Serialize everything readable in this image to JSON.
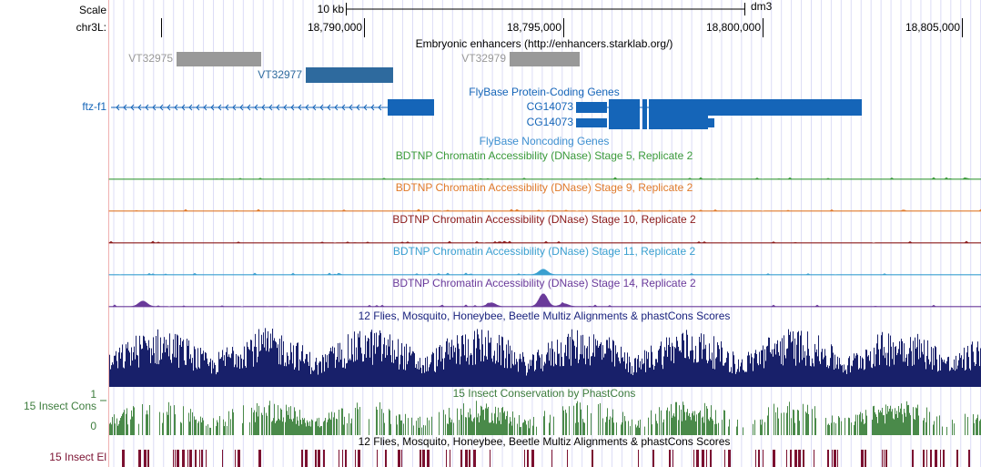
{
  "scale": {
    "label": "Scale",
    "bar": "10 kb",
    "assembly": "dm3"
  },
  "ruler": {
    "chrom": "chr3L:",
    "positions": [
      "18,790,000",
      "18,795,000",
      "18,800,000",
      "18,805,000"
    ]
  },
  "enhancers": {
    "title": "Embryonic enhancers (http://enhancers.starklab.org/)",
    "items": [
      "VT32975",
      "VT32977",
      "VT32979"
    ]
  },
  "protein_coding": {
    "title": "FlyBase Protein-Coding Genes",
    "genes": [
      "ftz-f1",
      "CG14073",
      "CG14073"
    ]
  },
  "noncoding": {
    "title": "FlyBase Noncoding Genes"
  },
  "dnase_tracks": [
    "BDTNP Chromatin Accessibility (DNase) Stage 5, Replicate 2",
    "BDTNP Chromatin Accessibility (DNase) Stage 9, Replicate 2",
    "BDTNP Chromatin Accessibility (DNase) Stage 10, Replicate 2",
    "BDTNP Chromatin Accessibility (DNase) Stage 11, Replicate 2",
    "BDTNP Chromatin Accessibility (DNase) Stage 14, Replicate 2"
  ],
  "multiz": {
    "title": "12 Flies, Mosquito, Honeybee, Beetle Multiz Alignments & phastCons Scores"
  },
  "phastcons": {
    "title": "15 Insect Conservation by PhastCons",
    "label": "15 Insect Cons",
    "max": 1,
    "min": 0
  },
  "elements": {
    "title": "12 Flies, Mosquito, Honeybee, Beetle Multiz Alignments & phastCons Scores",
    "label": "15 Insect El"
  }
}
